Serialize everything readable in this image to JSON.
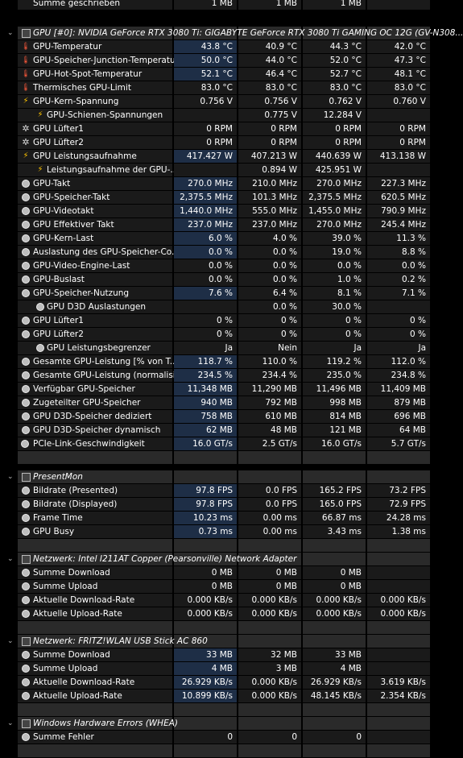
{
  "top_row": {
    "label": "Summe geschrieben",
    "values": [
      "1 MB",
      "1 MB",
      "1 MB",
      ""
    ]
  },
  "sections": [
    {
      "title": "GPU [#0]: NVIDIA GeForce RTX 3080 Ti: GIGABYTE GeForce RTX 3080 Ti GAMING OC 12G (GV-N308...",
      "icon": "hardware-icon",
      "rows": [
        {
          "label": "GPU-Temperatur",
          "icon": "thermometer-icon",
          "values": [
            "43.8 °C",
            "40.9 °C",
            "44.3 °C",
            "42.0 °C"
          ]
        },
        {
          "label": "GPU-Speicher-Junction-Temperatur",
          "icon": "thermometer-icon",
          "values": [
            "50.0 °C",
            "44.0 °C",
            "52.0 °C",
            "47.3 °C"
          ]
        },
        {
          "label": "GPU-Hot-Spot-Temperatur",
          "icon": "thermometer-icon",
          "values": [
            "52.1 °C",
            "46.4 °C",
            "52.7 °C",
            "48.1 °C"
          ]
        },
        {
          "label": "Thermisches GPU-Limit",
          "icon": "thermometer-icon",
          "values": [
            "83.0 °C",
            "83.0 °C",
            "83.0 °C",
            "83.0 °C"
          ]
        },
        {
          "label": "GPU-Kern-Spannung",
          "icon": "bolt-icon",
          "values": [
            "0.756 V",
            "0.756 V",
            "0.762 V",
            "0.760 V"
          ]
        },
        {
          "label": "GPU-Schienen-Spannungen",
          "icon": "bolt-icon",
          "sub": true,
          "values": [
            "",
            "0.775 V",
            "12.284 V",
            ""
          ]
        },
        {
          "label": "GPU Lüfter1",
          "icon": "fan-icon",
          "values": [
            "0 RPM",
            "0 RPM",
            "0 RPM",
            "0 RPM"
          ]
        },
        {
          "label": "GPU Lüfter2",
          "icon": "fan-icon",
          "values": [
            "0 RPM",
            "0 RPM",
            "0 RPM",
            "0 RPM"
          ]
        },
        {
          "label": "GPU Leistungsaufnahme",
          "icon": "bolt-icon",
          "values": [
            "417.427 W",
            "407.213 W",
            "440.639 W",
            "413.138 W"
          ]
        },
        {
          "label": "Leistungsaufnahme der GPU-...",
          "icon": "bolt-icon",
          "sub": true,
          "values": [
            "",
            "0.894 W",
            "425.951 W",
            ""
          ]
        },
        {
          "label": "GPU-Takt",
          "icon": "clock-icon",
          "values": [
            "270.0 MHz",
            "210.0 MHz",
            "270.0 MHz",
            "227.3 MHz"
          ]
        },
        {
          "label": "GPU-Speicher-Takt",
          "icon": "clock-icon",
          "values": [
            "2,375.5 MHz",
            "101.3 MHz",
            "2,375.5 MHz",
            "620.5 MHz"
          ]
        },
        {
          "label": "GPU-Videotakt",
          "icon": "clock-icon",
          "values": [
            "1,440.0 MHz",
            "555.0 MHz",
            "1,455.0 MHz",
            "790.9 MHz"
          ]
        },
        {
          "label": "GPU Effektiver Takt",
          "icon": "clock-icon",
          "values": [
            "237.0 MHz",
            "237.0 MHz",
            "270.0 MHz",
            "245.4 MHz"
          ]
        },
        {
          "label": "GPU-Kern-Last",
          "icon": "clock-icon",
          "values": [
            "6.0 %",
            "4.0 %",
            "39.0 %",
            "11.3 %"
          ]
        },
        {
          "label": "Auslastung des GPU-Speicher-Co...",
          "icon": "clock-icon",
          "values": [
            "0.0 %",
            "0.0 %",
            "19.0 %",
            "8.8 %"
          ]
        },
        {
          "label": "GPU-Video-Engine-Last",
          "icon": "clock-icon",
          "values": [
            "0.0 %",
            "0.0 %",
            "0.0 %",
            "0.0 %"
          ]
        },
        {
          "label": "GPU-Buslast",
          "icon": "clock-icon",
          "values": [
            "0.0 %",
            "0.0 %",
            "1.0 %",
            "0.2 %"
          ]
        },
        {
          "label": "GPU-Speicher-Nutzung",
          "icon": "clock-icon",
          "values": [
            "7.6 %",
            "6.4 %",
            "8.1 %",
            "7.1 %"
          ]
        },
        {
          "label": "GPU D3D Auslastungen",
          "icon": "clock-icon",
          "sub": true,
          "values": [
            "",
            "0.0 %",
            "30.0 %",
            ""
          ]
        },
        {
          "label": "GPU Lüfter1",
          "icon": "clock-icon",
          "values": [
            "0 %",
            "0 %",
            "0 %",
            "0 %"
          ]
        },
        {
          "label": "GPU Lüfter2",
          "icon": "clock-icon",
          "values": [
            "0 %",
            "0 %",
            "0 %",
            "0 %"
          ]
        },
        {
          "label": "GPU Leistungsbegrenzer",
          "icon": "clock-icon",
          "sub": true,
          "values": [
            "Ja",
            "Nein",
            "Ja",
            "Ja"
          ]
        },
        {
          "label": "Gesamte GPU-Leistung [% von T...",
          "icon": "clock-icon",
          "values": [
            "118.7 %",
            "110.0 %",
            "119.2 %",
            "112.0 %"
          ]
        },
        {
          "label": "Gesamte GPU-Leistung (normalisi...",
          "icon": "clock-icon",
          "values": [
            "234.5 %",
            "234.4 %",
            "235.0 %",
            "234.8 %"
          ]
        },
        {
          "label": "Verfügbar GPU-Speicher",
          "icon": "clock-icon",
          "values": [
            "11,348 MB",
            "11,290 MB",
            "11,496 MB",
            "11,409 MB"
          ]
        },
        {
          "label": "Zugeteilter GPU-Speicher",
          "icon": "clock-icon",
          "values": [
            "940 MB",
            "792 MB",
            "998 MB",
            "879 MB"
          ]
        },
        {
          "label": "GPU D3D-Speicher dediziert",
          "icon": "clock-icon",
          "values": [
            "758 MB",
            "610 MB",
            "814 MB",
            "696 MB"
          ]
        },
        {
          "label": "GPU D3D-Speicher dynamisch",
          "icon": "clock-icon",
          "values": [
            "62 MB",
            "48 MB",
            "121 MB",
            "64 MB"
          ]
        },
        {
          "label": "PCIe-Link-Geschwindigkeit",
          "icon": "pcie-icon",
          "values": [
            "16.0 GT/s",
            "2.5 GT/s",
            "16.0 GT/s",
            "5.7 GT/s"
          ]
        }
      ]
    },
    {
      "title": "PresentMon",
      "icon": "hardware-icon",
      "rows": [
        {
          "label": "Bildrate (Presented)",
          "icon": "clock-icon",
          "values": [
            "97.8 FPS",
            "0.0 FPS",
            "165.2 FPS",
            "73.2 FPS"
          ]
        },
        {
          "label": "Bildrate (Displayed)",
          "icon": "clock-icon",
          "values": [
            "97.8 FPS",
            "0.0 FPS",
            "165.0 FPS",
            "72.9 FPS"
          ]
        },
        {
          "label": "Frame Time",
          "icon": "clock-icon",
          "values": [
            "10.23 ms",
            "0.00 ms",
            "66.87 ms",
            "24.28 ms"
          ]
        },
        {
          "label": "GPU Busy",
          "icon": "clock-icon",
          "values": [
            "0.73 ms",
            "0.00 ms",
            "3.43 ms",
            "1.38 ms"
          ]
        }
      ]
    },
    {
      "title": "Netzwerk: Intel I211AT Copper (Pearsonville) Network Adapter",
      "icon": "hardware-icon",
      "rows": [
        {
          "label": "Summe Download",
          "icon": "clock-icon",
          "values": [
            "0 MB",
            "0 MB",
            "0 MB",
            ""
          ]
        },
        {
          "label": "Summe Upload",
          "icon": "clock-icon",
          "values": [
            "0 MB",
            "0 MB",
            "0 MB",
            ""
          ]
        },
        {
          "label": "Aktuelle Download-Rate",
          "icon": "clock-icon",
          "values": [
            "0.000 KB/s",
            "0.000 KB/s",
            "0.000 KB/s",
            "0.000 KB/s"
          ]
        },
        {
          "label": "Aktuelle Upload-Rate",
          "icon": "clock-icon",
          "values": [
            "0.000 KB/s",
            "0.000 KB/s",
            "0.000 KB/s",
            "0.000 KB/s"
          ]
        }
      ]
    },
    {
      "title": "Netzwerk: FRITZ!WLAN USB Stick AC 860",
      "icon": "hardware-icon",
      "rows": [
        {
          "label": "Summe Download",
          "icon": "clock-icon",
          "values": [
            "33 MB",
            "32 MB",
            "33 MB",
            ""
          ]
        },
        {
          "label": "Summe Upload",
          "icon": "clock-icon",
          "values": [
            "4 MB",
            "3 MB",
            "4 MB",
            ""
          ]
        },
        {
          "label": "Aktuelle Download-Rate",
          "icon": "clock-icon",
          "values": [
            "26.929 KB/s",
            "0.000 KB/s",
            "26.929 KB/s",
            "3.619 KB/s"
          ]
        },
        {
          "label": "Aktuelle Upload-Rate",
          "icon": "clock-icon",
          "values": [
            "10.899 KB/s",
            "0.000 KB/s",
            "48.145 KB/s",
            "2.354 KB/s"
          ]
        }
      ]
    },
    {
      "title": "Windows Hardware Errors (WHEA)",
      "icon": "hardware-icon",
      "rows": [
        {
          "label": "Summe Fehler",
          "icon": "clock-icon",
          "values": [
            "0",
            "0",
            "0",
            ""
          ]
        }
      ]
    }
  ],
  "colors": {
    "background": "#000000",
    "cell": "#1a1a1a",
    "header": "#2a2a2a",
    "highlight": "#1e2e46",
    "thermometer": "#ff5a3c",
    "bolt": "#ffc400"
  }
}
